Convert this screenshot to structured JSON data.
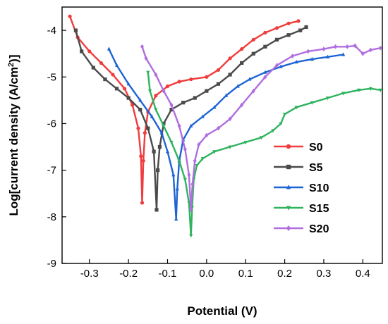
{
  "chart_data": {
    "type": "line",
    "title": "",
    "xlabel": "Potential (V)",
    "ylabel": "Log[current density (A/cm²)]",
    "ylabel_parts": {
      "prefix": "Log[current density (A/cm",
      "sup": "2",
      "suffix": ")]"
    },
    "xlim": [
      -0.37,
      0.45
    ],
    "ylim": [
      -9,
      -3.5
    ],
    "xticks": [
      -0.3,
      -0.2,
      -0.1,
      0.0,
      0.1,
      0.2,
      0.3,
      0.4
    ],
    "xtick_labels": [
      "-0.3",
      "-0.2",
      "-0.1",
      "0.0",
      "0.1",
      "0.2",
      "0.3",
      "0.4"
    ],
    "yticks": [
      -9,
      -8,
      -7,
      -6,
      -5,
      -4
    ],
    "ytick_labels": [
      "-9",
      "-8",
      "-7",
      "-6",
      "-5",
      "-4"
    ],
    "grid": false,
    "legend_position": "center-right",
    "series": [
      {
        "name": "S0",
        "color": "#f03c3c",
        "marker": "circle",
        "x": [
          -0.35,
          -0.33,
          -0.3,
          -0.27,
          -0.24,
          -0.21,
          -0.19,
          -0.175,
          -0.168,
          -0.165,
          -0.162,
          -0.158,
          -0.15,
          -0.13,
          -0.1,
          -0.07,
          -0.04,
          0.0,
          0.03,
          0.06,
          0.09,
          0.12,
          0.15,
          0.18,
          0.21,
          0.235
        ],
        "y": [
          -3.7,
          -4.15,
          -4.45,
          -4.7,
          -4.95,
          -5.25,
          -5.6,
          -6.1,
          -6.7,
          -7.7,
          -6.8,
          -6.2,
          -5.75,
          -5.4,
          -5.2,
          -5.1,
          -5.05,
          -5.0,
          -4.85,
          -4.6,
          -4.4,
          -4.2,
          -4.05,
          -3.95,
          -3.85,
          -3.8
        ]
      },
      {
        "name": "S5",
        "color": "#4a4a4a",
        "marker": "square",
        "x": [
          -0.335,
          -0.32,
          -0.29,
          -0.26,
          -0.23,
          -0.2,
          -0.17,
          -0.15,
          -0.135,
          -0.128,
          -0.125,
          -0.12,
          -0.11,
          -0.09,
          -0.06,
          -0.03,
          0.0,
          0.03,
          0.06,
          0.09,
          0.12,
          0.15,
          0.18,
          0.21,
          0.24,
          0.255
        ],
        "y": [
          -4.0,
          -4.45,
          -4.8,
          -5.05,
          -5.25,
          -5.45,
          -5.7,
          -6.1,
          -6.6,
          -7.85,
          -7.0,
          -6.5,
          -6.0,
          -5.7,
          -5.55,
          -5.45,
          -5.3,
          -5.15,
          -4.95,
          -4.7,
          -4.5,
          -4.35,
          -4.2,
          -4.1,
          -4.0,
          -3.93
        ]
      },
      {
        "name": "S10",
        "color": "#1c64d4",
        "marker": "triangle",
        "x": [
          -0.25,
          -0.23,
          -0.2,
          -0.17,
          -0.14,
          -0.115,
          -0.1,
          -0.085,
          -0.078,
          -0.075,
          -0.07,
          -0.06,
          -0.04,
          -0.01,
          0.02,
          0.05,
          0.08,
          0.11,
          0.15,
          0.19,
          0.23,
          0.27,
          0.31,
          0.35
        ],
        "y": [
          -4.4,
          -4.75,
          -5.15,
          -5.5,
          -5.85,
          -6.2,
          -6.6,
          -7.1,
          -8.05,
          -7.4,
          -6.8,
          -6.35,
          -6.05,
          -5.85,
          -5.65,
          -5.4,
          -5.2,
          -5.05,
          -4.9,
          -4.78,
          -4.68,
          -4.62,
          -4.57,
          -4.52
        ]
      },
      {
        "name": "S15",
        "color": "#2fb35f",
        "marker": "triangle-down",
        "x": [
          -0.15,
          -0.145,
          -0.13,
          -0.11,
          -0.09,
          -0.07,
          -0.055,
          -0.045,
          -0.04,
          -0.037,
          -0.033,
          -0.025,
          -0.01,
          0.02,
          0.06,
          0.1,
          0.14,
          0.17,
          0.19,
          0.2,
          0.23,
          0.27,
          0.31,
          0.35,
          0.39,
          0.42,
          0.445
        ],
        "y": [
          -4.9,
          -5.3,
          -5.7,
          -6.05,
          -6.4,
          -6.8,
          -7.2,
          -7.7,
          -8.4,
          -7.8,
          -7.2,
          -6.9,
          -6.75,
          -6.6,
          -6.5,
          -6.4,
          -6.3,
          -6.15,
          -6.0,
          -5.8,
          -5.65,
          -5.55,
          -5.45,
          -5.35,
          -5.28,
          -5.25,
          -5.28
        ]
      },
      {
        "name": "S20",
        "color": "#b06ee0",
        "marker": "diamond",
        "x": [
          -0.165,
          -0.155,
          -0.13,
          -0.11,
          -0.09,
          -0.07,
          -0.055,
          -0.045,
          -0.04,
          -0.036,
          -0.03,
          -0.02,
          0.0,
          0.03,
          0.06,
          0.09,
          0.12,
          0.15,
          0.18,
          0.22,
          0.26,
          0.3,
          0.33,
          0.36,
          0.38,
          0.4,
          0.42,
          0.445
        ],
        "y": [
          -4.35,
          -4.6,
          -4.95,
          -5.3,
          -5.6,
          -6.05,
          -6.55,
          -7.1,
          -7.85,
          -7.3,
          -6.8,
          -6.45,
          -6.25,
          -6.1,
          -5.9,
          -5.6,
          -5.3,
          -5.0,
          -4.75,
          -4.55,
          -4.45,
          -4.4,
          -4.35,
          -4.35,
          -4.33,
          -4.5,
          -4.42,
          -4.38
        ]
      }
    ]
  }
}
